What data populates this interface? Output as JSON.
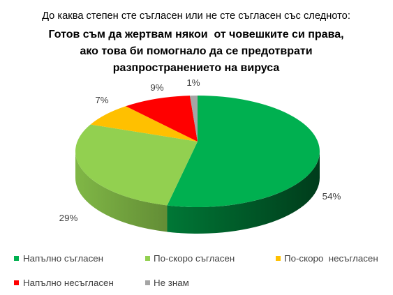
{
  "chart_data": {
    "type": "pie",
    "style": "3d",
    "subtitle": "До каква степен сте съгласен или не сте съгласен със следното:",
    "title_lines": [
      "Готов съм да жертвам някои  от човешките си права,",
      "ако това би помогнало да се предотврати",
      "разпространението на вируса"
    ],
    "legend_position": "bottom",
    "slices": [
      {
        "name": "Напълно съгласен",
        "value": 54,
        "label": "54%",
        "color": "#00b050"
      },
      {
        "name": "По-скоро съгласен",
        "value": 29,
        "label": "29%",
        "color": "#92d050"
      },
      {
        "name": "По-скоро  несъгласен",
        "value": 7,
        "label": "7%",
        "color": "#ffc000"
      },
      {
        "name": "Напълно несъгласен",
        "value": 9,
        "label": "9%",
        "color": "#ff0000"
      },
      {
        "name": "Не знам",
        "value": 1,
        "label": "1%",
        "color": "#a5a5a5"
      }
    ]
  }
}
